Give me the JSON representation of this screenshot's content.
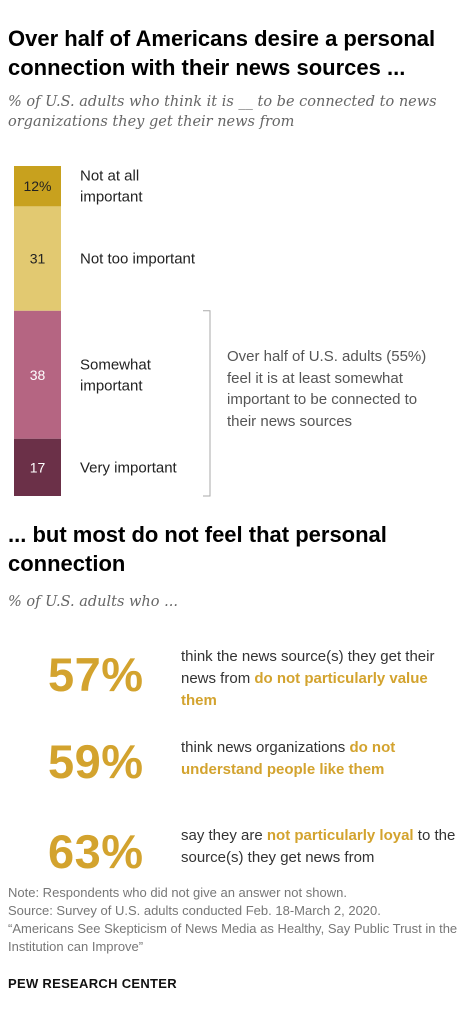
{
  "header": {
    "title": "Over half of Americans desire a personal connection with their news sources ...",
    "subtitle": "% of U.S. adults who think it is __ to be connected to news organizations they get their news from"
  },
  "chart_data": {
    "type": "bar",
    "orientation": "stacked-vertical",
    "categories": [
      "Not at all important",
      "Not too important",
      "Somewhat important",
      "Very important"
    ],
    "values": [
      12,
      31,
      38,
      17
    ],
    "value_labels": [
      "12%",
      "31",
      "38",
      "17"
    ],
    "colors": [
      "#c8a11e",
      "#e2c971",
      "#b56582",
      "#6b3048"
    ],
    "value_label_colors": [
      "#222222",
      "#222222",
      "#ffffff",
      "#ffffff"
    ],
    "bracket_note": "Over half of U.S. adults (55%) feel it is at least somewhat important to be connected to their news sources"
  },
  "section2": {
    "title": "... but most do not feel that personal connection",
    "subtitle": "% of U.S. adults who ...",
    "stats": [
      {
        "pct": "57%",
        "text_before": "think the news source(s) they get their news from ",
        "highlight": "do not particularly value them",
        "text_after": ""
      },
      {
        "pct": "59%",
        "text_before": "think news organizations ",
        "highlight": "do not understand people like them",
        "text_after": ""
      },
      {
        "pct": "63%",
        "text_before": "say they are ",
        "highlight": "not particularly loyal",
        "text_after": " to the source(s) they get news from"
      }
    ]
  },
  "footer": {
    "note": "Note: Respondents who did not give an answer not shown.",
    "source": "Source: Survey of U.S. adults conducted Feb. 18-March 2, 2020.",
    "report": "“Americans See Skepticism of News Media as Healthy, Say Public Trust in the Institution can Improve”",
    "brand": "PEW RESEARCH CENTER"
  }
}
